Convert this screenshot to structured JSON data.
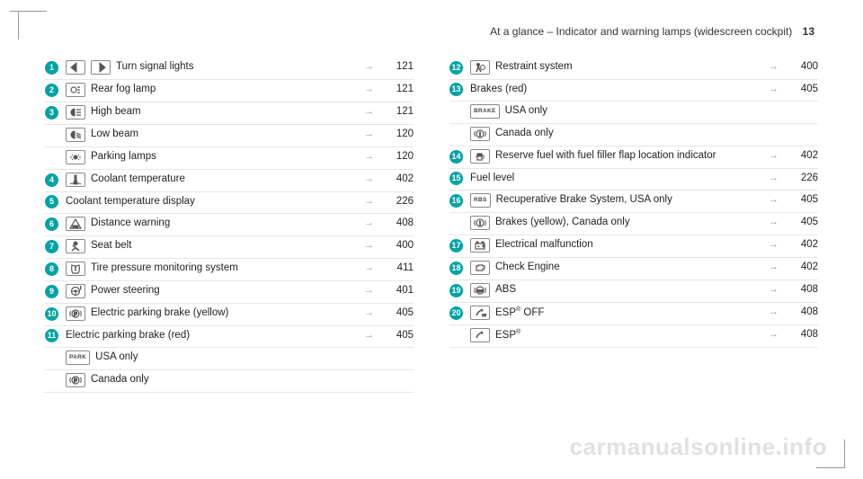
{
  "header": {
    "title": "At a glance – Indicator and warning lamps (widescreen cockpit)",
    "page_number": "13"
  },
  "watermark": "carmanualsonline.info",
  "colors": {
    "circle_bg": "#00a3a3",
    "circle_text": "#ffffff",
    "divider": "#e6e6e6",
    "icon_border": "#888888"
  },
  "left_col": [
    {
      "num": "1",
      "icons": [
        "turn-left",
        "turn-right"
      ],
      "label": "Turn signal lights",
      "page": "121"
    },
    {
      "num": "2",
      "icons": [
        "rear-fog"
      ],
      "label": "Rear fog lamp",
      "page": "121"
    },
    {
      "num": "3",
      "icons": [
        "high-beam"
      ],
      "label": "High beam",
      "page": "121"
    },
    {
      "num": "",
      "icons": [
        "low-beam"
      ],
      "label": "Low beam",
      "page": "120"
    },
    {
      "num": "",
      "icons": [
        "parking-lamps"
      ],
      "label": "Parking lamps",
      "page": "120"
    },
    {
      "num": "4",
      "icons": [
        "coolant-temp"
      ],
      "label": "Coolant temperature",
      "page": "402"
    },
    {
      "num": "5",
      "icons": [],
      "label": "Coolant temperature display",
      "page": "226"
    },
    {
      "num": "6",
      "icons": [
        "distance-warning"
      ],
      "label": "Distance warning",
      "page": "408"
    },
    {
      "num": "7",
      "icons": [
        "seat-belt"
      ],
      "label": "Seat belt",
      "page": "400"
    },
    {
      "num": "8",
      "icons": [
        "tpms"
      ],
      "label": "Tire pressure monitoring system",
      "page": "411"
    },
    {
      "num": "9",
      "icons": [
        "power-steering"
      ],
      "label": "Power steering",
      "page": "401"
    },
    {
      "num": "10",
      "icons": [
        "epb-yellow"
      ],
      "label": "Electric parking brake (yellow)",
      "page": "405"
    },
    {
      "num": "11",
      "icons": [],
      "label": "Electric parking brake (red)",
      "page": "405"
    },
    {
      "num": "",
      "icons": [
        "park-text"
      ],
      "label": "USA only",
      "page": ""
    },
    {
      "num": "",
      "icons": [
        "brake-circle"
      ],
      "label": "Canada only",
      "page": ""
    }
  ],
  "right_col": [
    {
      "num": "12",
      "icons": [
        "restraint"
      ],
      "label": "Restraint system",
      "page": "400"
    },
    {
      "num": "13",
      "icons": [],
      "label": "Brakes (red)",
      "page": "405"
    },
    {
      "num": "",
      "icons": [
        "brake-text"
      ],
      "label": "USA only",
      "page": ""
    },
    {
      "num": "",
      "icons": [
        "brake-circle-ex"
      ],
      "label": "Canada only",
      "page": ""
    },
    {
      "num": "14",
      "icons": [
        "fuel-flap"
      ],
      "label": "Reserve fuel with fuel filler flap location indicator",
      "page": "402"
    },
    {
      "num": "15",
      "icons": [],
      "label": "Fuel level",
      "page": "226"
    },
    {
      "num": "16",
      "icons": [
        "rbs-text"
      ],
      "label": "Recuperative Brake System, USA only",
      "page": "405"
    },
    {
      "num": "",
      "icons": [
        "brake-circle-ex"
      ],
      "label": "Brakes (yellow), Canada only",
      "page": "405"
    },
    {
      "num": "17",
      "icons": [
        "battery"
      ],
      "label": "Electrical malfunction",
      "page": "402"
    },
    {
      "num": "18",
      "icons": [
        "engine"
      ],
      "label": "Check Engine",
      "page": "402"
    },
    {
      "num": "19",
      "icons": [
        "abs"
      ],
      "label": "ABS",
      "page": "408"
    },
    {
      "num": "20",
      "icons": [
        "esp-off"
      ],
      "label_html": "ESP<sup>®</sup> OFF",
      "page": "408"
    },
    {
      "num": "",
      "icons": [
        "esp"
      ],
      "label_html": "ESP<sup>®</sup>",
      "page": "408"
    }
  ]
}
